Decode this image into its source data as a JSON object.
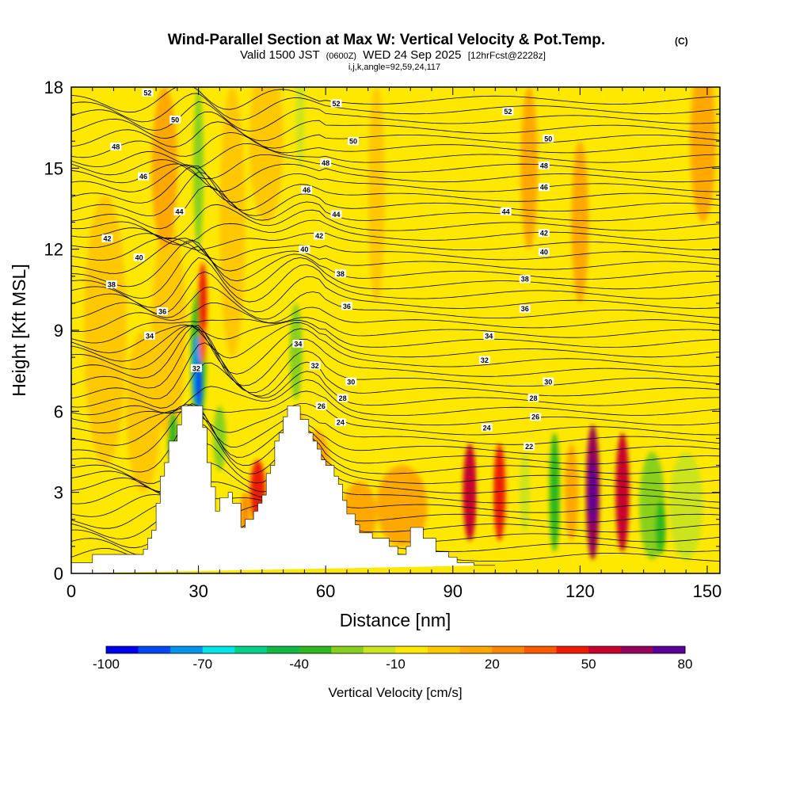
{
  "chart_data": {
    "type": "heatmap",
    "title": "Wind-Parallel Section at Max W: Vertical Velocity & Pot.Temp.",
    "title_mark": "(C)",
    "subtitle_main": "Valid 1500 JST",
    "subtitle_utc": "(0600Z)",
    "subtitle_date": "WED 24 Sep 2025",
    "subtitle_run": "[12hrFcst@2228z]",
    "subtitle_index": "i,j,k,angle=92,59,24,117",
    "xlabel": "Distance [nm]",
    "ylabel": "Height [Kft MSL]",
    "xlim": [
      0,
      153
    ],
    "ylim": [
      0,
      18
    ],
    "x_ticks": [
      0,
      30,
      60,
      90,
      120,
      150
    ],
    "y_ticks": [
      0,
      3,
      6,
      9,
      12,
      15,
      18
    ],
    "colorbar": {
      "label": "Vertical Velocity [cm/s]",
      "tick_labels": [
        "-100",
        "-70",
        "-40",
        "-10",
        "20",
        "50",
        "80"
      ],
      "tick_values": [
        -100,
        -70,
        -40,
        -10,
        20,
        50,
        80
      ],
      "range": [
        -100,
        80
      ],
      "colors": [
        "#0000ee",
        "#0048f0",
        "#0094ee",
        "#00e6e6",
        "#00d08a",
        "#10b848",
        "#2ab81e",
        "#88d01e",
        "#cce41e",
        "#ffe800",
        "#ffc800",
        "#ffa800",
        "#ff8800",
        "#ff5a00",
        "#ee1a00",
        "#c8002e",
        "#96005a",
        "#5a0096"
      ]
    },
    "terrain": {
      "x": [
        0,
        5,
        5,
        17,
        17,
        18,
        18,
        19,
        19,
        20,
        20,
        21,
        21,
        22,
        22,
        23,
        23,
        25,
        25,
        26,
        26,
        27,
        27,
        28,
        28,
        31,
        31,
        32,
        32,
        33,
        33,
        34,
        34,
        35,
        35,
        37,
        37,
        38,
        38,
        40,
        40,
        41,
        41,
        43,
        43,
        44,
        44,
        45,
        45,
        46,
        46,
        47,
        47,
        48,
        48,
        49,
        49,
        50,
        50,
        51,
        51,
        52,
        52,
        54,
        54,
        56,
        56,
        57,
        57,
        58,
        58,
        59,
        59,
        60,
        60,
        62,
        62,
        63,
        63,
        64,
        64,
        65,
        65,
        67,
        67,
        68,
        68,
        71,
        71,
        75,
        75,
        77,
        77,
        79,
        79,
        80,
        80,
        83,
        83,
        86,
        86,
        89,
        89,
        91,
        91,
        95,
        95,
        100,
        100,
        153
      ],
      "y": [
        0.4,
        0.4,
        0.7,
        0.7,
        0.9,
        0.9,
        1.3,
        1.3,
        1.6,
        1.6,
        2.6,
        2.6,
        3.6,
        3.6,
        4.1,
        4.1,
        4.9,
        4.9,
        5.5,
        5.5,
        6.2,
        6.2,
        6.2,
        6.2,
        6.2,
        6.2,
        5.4,
        5.4,
        4.1,
        4.1,
        3.2,
        3.2,
        2.3,
        2.3,
        2.8,
        2.8,
        3.0,
        3.0,
        2.6,
        2.6,
        1.7,
        1.7,
        2.0,
        2.0,
        2.3,
        2.3,
        2.6,
        2.6,
        2.9,
        2.9,
        3.7,
        3.7,
        4.0,
        4.0,
        4.9,
        4.9,
        5.2,
        5.2,
        5.8,
        5.8,
        6.2,
        6.2,
        6.2,
        6.2,
        5.7,
        5.7,
        5.2,
        5.2,
        4.9,
        4.9,
        4.6,
        4.6,
        4.2,
        4.2,
        4.0,
        4.0,
        3.6,
        3.6,
        3.3,
        3.3,
        2.7,
        2.7,
        2.2,
        2.2,
        1.8,
        1.8,
        1.5,
        1.5,
        1.3,
        1.3,
        1.0,
        1.0,
        0.7,
        0.7,
        1.0,
        1.0,
        1.7,
        1.7,
        1.3,
        1.3,
        0.8,
        0.8,
        0.6,
        0.6,
        0.4,
        0.4,
        0.3,
        0.3
      ]
    },
    "contour_labels": [
      {
        "text": "52",
        "x": 18,
        "y": 17.8
      },
      {
        "text": "50",
        "x": 24.5,
        "y": 16.8
      },
      {
        "text": "48",
        "x": 10.5,
        "y": 15.8
      },
      {
        "text": "46",
        "x": 17,
        "y": 14.7
      },
      {
        "text": "44",
        "x": 25.5,
        "y": 13.4
      },
      {
        "text": "42",
        "x": 8.5,
        "y": 12.4
      },
      {
        "text": "40",
        "x": 16,
        "y": 11.7
      },
      {
        "text": "38",
        "x": 9.5,
        "y": 10.7
      },
      {
        "text": "36",
        "x": 21.5,
        "y": 9.7
      },
      {
        "text": "34",
        "x": 18.5,
        "y": 8.8
      },
      {
        "text": "32",
        "x": 29.5,
        "y": 7.6
      },
      {
        "text": "52",
        "x": 62.5,
        "y": 17.4
      },
      {
        "text": "50",
        "x": 66.5,
        "y": 16.0
      },
      {
        "text": "48",
        "x": 60,
        "y": 15.2
      },
      {
        "text": "46",
        "x": 55.5,
        "y": 14.2
      },
      {
        "text": "44",
        "x": 62.5,
        "y": 13.3
      },
      {
        "text": "42",
        "x": 58.5,
        "y": 12.5
      },
      {
        "text": "40",
        "x": 55,
        "y": 12.0
      },
      {
        "text": "38",
        "x": 63.5,
        "y": 11.1
      },
      {
        "text": "36",
        "x": 65,
        "y": 9.9
      },
      {
        "text": "34",
        "x": 53.5,
        "y": 8.5
      },
      {
        "text": "32",
        "x": 57.5,
        "y": 7.7
      },
      {
        "text": "30",
        "x": 66,
        "y": 7.1
      },
      {
        "text": "28",
        "x": 64,
        "y": 6.5
      },
      {
        "text": "26",
        "x": 59,
        "y": 6.2
      },
      {
        "text": "24",
        "x": 63.5,
        "y": 5.6
      },
      {
        "text": "52",
        "x": 103,
        "y": 17.1
      },
      {
        "text": "50",
        "x": 112.5,
        "y": 16.1
      },
      {
        "text": "48",
        "x": 111.5,
        "y": 15.1
      },
      {
        "text": "46",
        "x": 111.5,
        "y": 14.3
      },
      {
        "text": "44",
        "x": 102.5,
        "y": 13.4
      },
      {
        "text": "42",
        "x": 111.5,
        "y": 12.6
      },
      {
        "text": "40",
        "x": 111.5,
        "y": 11.9
      },
      {
        "text": "38",
        "x": 107,
        "y": 10.9
      },
      {
        "text": "36",
        "x": 107,
        "y": 9.8
      },
      {
        "text": "34",
        "x": 98.5,
        "y": 8.8
      },
      {
        "text": "32",
        "x": 97.5,
        "y": 7.9
      },
      {
        "text": "30",
        "x": 112.5,
        "y": 7.1
      },
      {
        "text": "28",
        "x": 109,
        "y": 6.5
      },
      {
        "text": "26",
        "x": 109.5,
        "y": 5.8
      },
      {
        "text": "24",
        "x": 98,
        "y": 5.4
      },
      {
        "text": "22",
        "x": 108,
        "y": 4.7
      }
    ]
  }
}
